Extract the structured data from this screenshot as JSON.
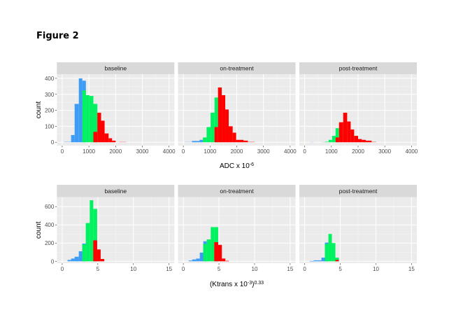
{
  "figure_title": "Figure 2",
  "colors": {
    "blue": "#3d9cf5",
    "green": "#00f260",
    "red": "#ff0000",
    "panel_bg": "#ebebeb",
    "strip_bg": "#d9d9d9"
  },
  "chart_data": [
    {
      "type": "bar",
      "title": "",
      "xlabel": "ADC x 10",
      "xlabel_sup": "-6",
      "ylabel": "count",
      "xlim": [
        -200,
        4200
      ],
      "ylim": [
        -21,
        426
      ],
      "xticks": [
        0,
        1000,
        2000,
        3000,
        4000
      ],
      "xminor": [
        500,
        1500,
        2500,
        3500
      ],
      "yticks": [
        0,
        100,
        200,
        300,
        400
      ],
      "yminor": [
        50,
        150,
        250,
        350
      ],
      "facets": [
        {
          "title": "baseline",
          "bins": [
            [
              70,
              333,
              5,
              "blue-light"
            ],
            [
              333,
              465,
              45,
              "blue"
            ],
            [
              465,
              623,
              240,
              "blue"
            ],
            [
              623,
              754,
              400,
              "blue"
            ],
            [
              754,
              886,
              385,
              "blue"
            ],
            [
              754,
              886,
              325,
              "green"
            ],
            [
              886,
              1018,
              295,
              "green"
            ],
            [
              1018,
              1167,
              290,
              "green"
            ],
            [
              1167,
              1316,
              240,
              "green"
            ],
            [
              1167,
              1316,
              65,
              "red"
            ],
            [
              1316,
              1456,
              185,
              "red"
            ],
            [
              1456,
              1588,
              135,
              "red"
            ],
            [
              1588,
              1737,
              55,
              "red"
            ],
            [
              1737,
              1868,
              25,
              "red"
            ],
            [
              1868,
              2000,
              10,
              "red"
            ],
            [
              2130,
              2395,
              3,
              "red-light"
            ]
          ]
        },
        {
          "title": "on-treatment",
          "bins": [
            [
              61,
              322,
              3,
              "blue-light"
            ],
            [
              322,
              610,
              8,
              "blue"
            ],
            [
              610,
              732,
              15,
              "blue"
            ],
            [
              732,
              871,
              30,
              "green"
            ],
            [
              871,
              1020,
              95,
              "green"
            ],
            [
              1020,
              1168,
              185,
              "green"
            ],
            [
              1168,
              1298,
              280,
              "green"
            ],
            [
              1168,
              1298,
              95,
              "red"
            ],
            [
              1298,
              1438,
              343,
              "red"
            ],
            [
              1438,
              1569,
              295,
              "red"
            ],
            [
              1569,
              1699,
              205,
              "red"
            ],
            [
              1699,
              1847,
              100,
              "red"
            ],
            [
              1847,
              1978,
              60,
              "red"
            ],
            [
              1978,
              2257,
              15,
              "red"
            ],
            [
              2257,
              2414,
              10,
              "red"
            ],
            [
              2414,
              2675,
              4,
              "red-light"
            ]
          ]
        },
        {
          "title": "post-treatment",
          "bins": [
            [
              200,
              330,
              2,
              "blue-light"
            ],
            [
              635,
              765,
              2,
              "blue-light"
            ],
            [
              765,
              896,
              3,
              "green"
            ],
            [
              896,
              1026,
              15,
              "green"
            ],
            [
              1026,
              1157,
              40,
              "green"
            ],
            [
              1157,
              1287,
              88,
              "green"
            ],
            [
              1157,
              1287,
              30,
              "red"
            ],
            [
              1287,
              1443,
              125,
              "red"
            ],
            [
              1443,
              1591,
              185,
              "red"
            ],
            [
              1591,
              1722,
              130,
              "red"
            ],
            [
              1722,
              1852,
              80,
              "red"
            ],
            [
              1852,
              2000,
              40,
              "red"
            ],
            [
              2000,
              2139,
              20,
              "red"
            ],
            [
              2139,
              2287,
              15,
              "red"
            ],
            [
              2287,
              2504,
              10,
              "red"
            ],
            [
              2504,
              2678,
              4,
              "red-light"
            ]
          ]
        }
      ]
    },
    {
      "type": "bar",
      "title": "",
      "xlabel": "(Ktrans x 10",
      "xlabel_sup": "-3",
      "xlabel_close": ")",
      "xlabel_sup2": "0.33",
      "ylabel": "count",
      "xlim": [
        -0.75,
        15.75
      ],
      "ylim": [
        -21,
        705
      ],
      "xticks": [
        0,
        5,
        10,
        15
      ],
      "xminor": [
        2.5,
        7.5,
        12.5
      ],
      "yticks": [
        0,
        200,
        400,
        600
      ],
      "yminor": [
        100,
        300,
        500
      ],
      "facets": [
        {
          "title": "baseline",
          "bins": [
            [
              0.75,
              1.25,
              15,
              "blue"
            ],
            [
              1.25,
              1.74,
              30,
              "blue"
            ],
            [
              1.74,
              2.33,
              50,
              "blue"
            ],
            [
              2.33,
              2.82,
              110,
              "blue"
            ],
            [
              2.82,
              3.31,
              195,
              "blue"
            ],
            [
              2.82,
              3.31,
              185,
              "green"
            ],
            [
              3.31,
              3.87,
              420,
              "green"
            ],
            [
              3.87,
              4.36,
              670,
              "green"
            ],
            [
              4.36,
              4.91,
              575,
              "green"
            ],
            [
              4.36,
              4.91,
              230,
              "red"
            ],
            [
              4.91,
              5.4,
              130,
              "red"
            ],
            [
              5.4,
              5.9,
              25,
              "red"
            ]
          ]
        },
        {
          "title": "on-treatment",
          "bins": [
            [
              0.75,
              1.24,
              8,
              "blue"
            ],
            [
              1.24,
              1.79,
              20,
              "blue"
            ],
            [
              1.79,
              2.31,
              30,
              "blue"
            ],
            [
              2.31,
              2.8,
              95,
              "blue"
            ],
            [
              2.8,
              3.29,
              220,
              "blue"
            ],
            [
              2.8,
              3.29,
              190,
              "green"
            ],
            [
              3.29,
              3.85,
              240,
              "green"
            ],
            [
              3.85,
              4.34,
              375,
              "green"
            ],
            [
              4.34,
              4.89,
              375,
              "green"
            ],
            [
              4.34,
              4.89,
              210,
              "red"
            ],
            [
              4.89,
              5.41,
              180,
              "red"
            ],
            [
              5.41,
              5.9,
              30,
              "red"
            ],
            [
              5.9,
              6.39,
              5,
              "red"
            ]
          ]
        },
        {
          "title": "post-treatment",
          "bins": [
            [
              0.72,
              1.27,
              3,
              "blue"
            ],
            [
              1.27,
              2.35,
              10,
              "blue"
            ],
            [
              2.35,
              2.84,
              40,
              "blue"
            ],
            [
              2.84,
              3.33,
              205,
              "blue"
            ],
            [
              2.84,
              3.33,
              190,
              "green"
            ],
            [
              3.33,
              3.82,
              300,
              "green"
            ],
            [
              3.82,
              4.31,
              200,
              "green"
            ],
            [
              4.31,
              4.8,
              40,
              "green"
            ],
            [
              4.31,
              4.8,
              15,
              "red"
            ]
          ]
        }
      ]
    }
  ]
}
